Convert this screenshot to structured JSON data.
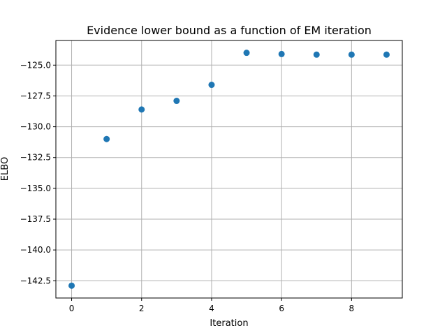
{
  "chart_data": {
    "type": "scatter",
    "title": "Evidence lower bound as a function of EM iteration",
    "xlabel": "Iteration",
    "ylabel": "ELBO",
    "x": [
      0,
      1,
      2,
      3,
      4,
      5,
      6,
      7,
      8,
      9
    ],
    "y": [
      -142.9,
      -131.0,
      -128.6,
      -127.9,
      -126.6,
      -124.0,
      -124.1,
      -124.15,
      -124.15,
      -124.15
    ],
    "xlim": [
      -0.45,
      9.45
    ],
    "ylim": [
      -143.9,
      -123.0
    ],
    "xticks": [
      0,
      2,
      4,
      6,
      8
    ],
    "xtick_labels": [
      "0",
      "2",
      "4",
      "6",
      "8"
    ],
    "yticks": [
      -125.0,
      -127.5,
      -130.0,
      -132.5,
      -135.0,
      -137.5,
      -140.0,
      -142.5
    ],
    "ytick_labels": [
      "−125.0",
      "−127.5",
      "−130.0",
      "−132.5",
      "−135.0",
      "−137.5",
      "−140.0",
      "−142.5"
    ],
    "grid": true,
    "marker_color": "#1f77b4"
  }
}
